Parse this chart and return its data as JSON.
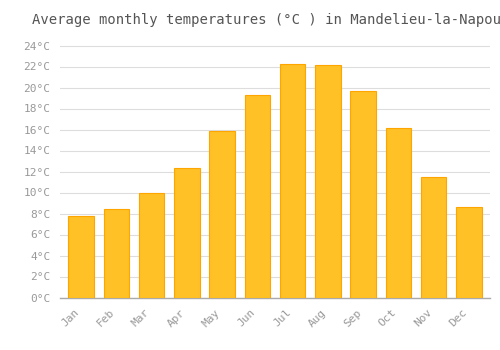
{
  "title": "Average monthly temperatures (°C ) in Mandelieu-la-Napoule",
  "months": [
    "Jan",
    "Feb",
    "Mar",
    "Apr",
    "May",
    "Jun",
    "Jul",
    "Aug",
    "Sep",
    "Oct",
    "Nov",
    "Dec"
  ],
  "values": [
    7.8,
    8.4,
    10.0,
    12.3,
    15.9,
    19.3,
    22.2,
    22.1,
    19.7,
    16.1,
    11.5,
    8.6
  ],
  "bar_color": "#FFC125",
  "bar_edge_color": "#FFA500",
  "background_color": "#FFFFFF",
  "grid_color": "#DDDDDD",
  "text_color": "#999999",
  "ylim": [
    0,
    25
  ],
  "ytick_step": 2,
  "title_fontsize": 10,
  "tick_fontsize": 8,
  "title_color": "#555555"
}
